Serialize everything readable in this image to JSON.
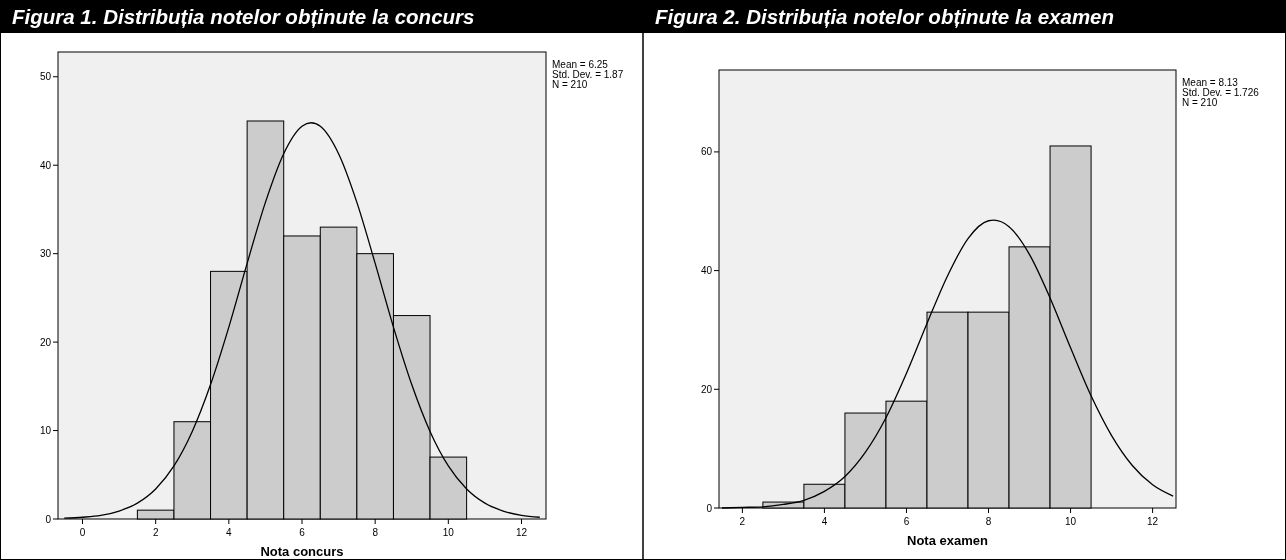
{
  "chart_data": [
    {
      "type": "histogram",
      "title": "Figura 1. Distribuția notelor obținute la concurs",
      "xlabel": "Nota concurs",
      "annotations": [
        "Mean = 6.25",
        "Std. Dev. = 1.87",
        "N = 210"
      ],
      "bins": [
        1.5,
        2.5,
        3.5,
        4.5,
        5.5,
        6.5,
        7.5,
        8.5,
        9.5,
        10.5
      ],
      "values": [
        1,
        11,
        28,
        45,
        32,
        33,
        30,
        23,
        7
      ],
      "color": "#cccccc",
      "xlim": [
        -0.67,
        12.67
      ],
      "ylim": [
        0,
        52.8
      ],
      "xticks": [
        0,
        2,
        4,
        6,
        8,
        10,
        12
      ],
      "yticks": [
        0,
        10,
        20,
        30,
        40,
        50
      ],
      "series": [
        {
          "type": "line",
          "color": "#000000",
          "x": [
            -0.5,
            0,
            0.5,
            1,
            1.5,
            2,
            2.5,
            3,
            3.5,
            4,
            4.5,
            5,
            5.5,
            6,
            6.25,
            6.5,
            7,
            7.5,
            8,
            8.5,
            9,
            9.5,
            10,
            10.5,
            11,
            11.5,
            12,
            12.5
          ],
          "values": [
            0.1,
            0.2,
            0.4,
            0.9,
            1.8,
            3.4,
            6,
            9.9,
            15.2,
            21.7,
            28.9,
            35.8,
            41.3,
            44.4,
            44.8,
            44.4,
            41.3,
            35.8,
            28.9,
            21.7,
            15.2,
            9.9,
            6,
            3.4,
            1.8,
            0.9,
            0.4,
            0.2
          ]
        }
      ]
    },
    {
      "type": "histogram",
      "title": "Figura 2. Distribuția notelor obținute la examen",
      "xlabel": "Nota examen",
      "annotations": [
        "Mean = 8.13",
        "Std. Dev. = 1.726",
        "N = 210"
      ],
      "bins": [
        2.5,
        3.5,
        4.5,
        5.5,
        6.5,
        7.5,
        8.5,
        9.5,
        10.5
      ],
      "values": [
        1,
        4,
        16,
        18,
        33,
        33,
        44,
        61
      ],
      "color": "#cccccc",
      "xlim": [
        1.43,
        12.57
      ],
      "ylim": [
        0,
        73.8
      ],
      "xticks": [
        2,
        4,
        6,
        8,
        10,
        12
      ],
      "yticks": [
        0,
        20,
        40,
        60
      ],
      "series": [
        {
          "type": "line",
          "color": "#000000",
          "x": [
            1.5,
            2,
            2.5,
            3,
            3.5,
            4,
            4.5,
            5,
            5.5,
            6,
            6.5,
            7,
            7.5,
            8,
            8.13,
            8.5,
            9,
            9.5,
            10,
            10.5,
            11,
            11.5,
            12,
            12.5
          ],
          "values": [
            0,
            0.1,
            0.2,
            0.6,
            1.3,
            2.8,
            5.3,
            9.4,
            15.2,
            22.7,
            31.1,
            39.1,
            45.4,
            48.4,
            48.5,
            47.4,
            42.7,
            35.4,
            27,
            18.9,
            12.2,
            7.2,
            3.9,
            2
          ]
        }
      ]
    }
  ]
}
